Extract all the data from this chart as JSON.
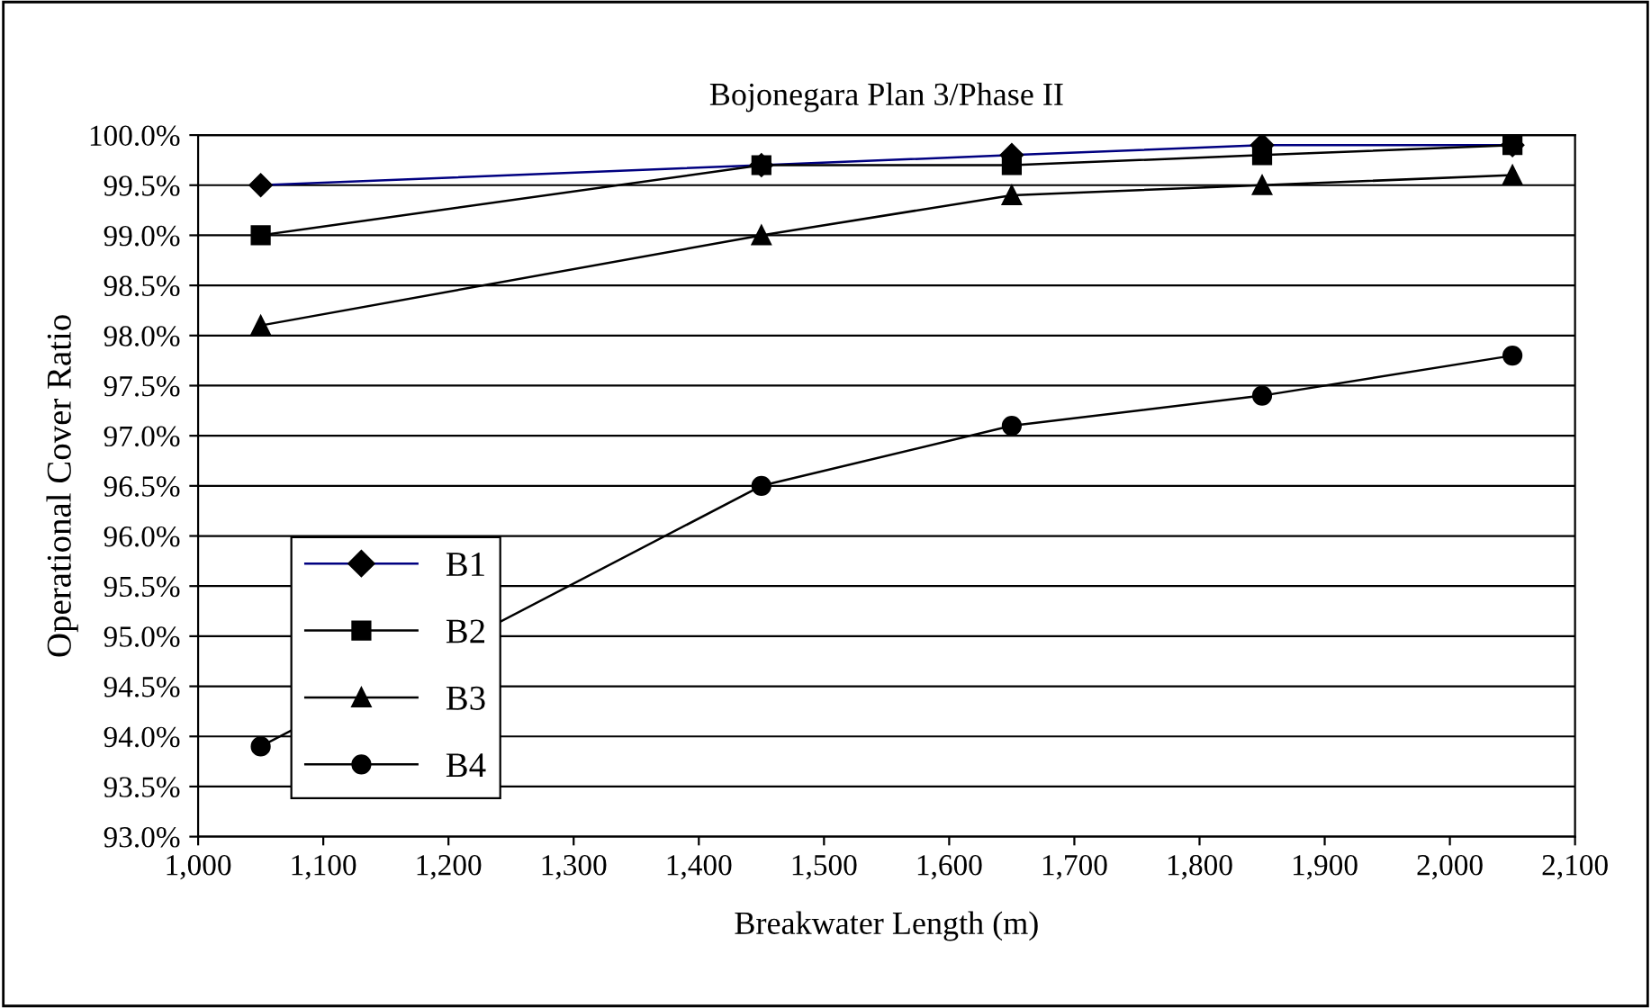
{
  "chart_data": {
    "type": "line",
    "title": "Bojonegara Plan 3/Phase II",
    "xlabel": "Breakwater Length (m)",
    "ylabel": "Operational Cover Ratio",
    "x": [
      1050,
      1450,
      1650,
      1850,
      2050
    ],
    "series": [
      {
        "name": "B1",
        "color": "#000080",
        "marker": "diamond",
        "values": [
          99.5,
          99.7,
          99.8,
          99.9,
          99.9
        ]
      },
      {
        "name": "B2",
        "color": "#000000",
        "marker": "square",
        "values": [
          99.0,
          99.7,
          99.7,
          99.8,
          99.9
        ]
      },
      {
        "name": "B3",
        "color": "#000000",
        "marker": "triangle",
        "values": [
          98.1,
          99.0,
          99.4,
          99.5,
          99.6
        ]
      },
      {
        "name": "B4",
        "color": "#000000",
        "marker": "circle",
        "values": [
          93.9,
          96.5,
          97.1,
          97.4,
          97.8
        ]
      }
    ],
    "xlim": [
      1000,
      2100
    ],
    "xticks": [
      {
        "value": 1000,
        "label": "1,000"
      },
      {
        "value": 1100,
        "label": "1,100"
      },
      {
        "value": 1200,
        "label": "1,200"
      },
      {
        "value": 1300,
        "label": "1,300"
      },
      {
        "value": 1400,
        "label": "1,400"
      },
      {
        "value": 1500,
        "label": "1,500"
      },
      {
        "value": 1600,
        "label": "1,600"
      },
      {
        "value": 1700,
        "label": "1,700"
      },
      {
        "value": 1800,
        "label": "1,800"
      },
      {
        "value": 1900,
        "label": "1,900"
      },
      {
        "value": 2000,
        "label": "2,000"
      },
      {
        "value": 2100,
        "label": "2,100"
      }
    ],
    "ylim": [
      93,
      100
    ],
    "yticks": [
      {
        "value": 93,
        "label": "93.0%"
      },
      {
        "value": 93.5,
        "label": "93.5%"
      },
      {
        "value": 94,
        "label": "94.0%"
      },
      {
        "value": 94.5,
        "label": "94.5%"
      },
      {
        "value": 95,
        "label": "95.0%"
      },
      {
        "value": 95.5,
        "label": "95.5%"
      },
      {
        "value": 96,
        "label": "96.0%"
      },
      {
        "value": 96.5,
        "label": "96.5%"
      },
      {
        "value": 97,
        "label": "97.0%"
      },
      {
        "value": 97.5,
        "label": "97.5%"
      },
      {
        "value": 98,
        "label": "98.0%"
      },
      {
        "value": 98.5,
        "label": "98.5%"
      },
      {
        "value": 99,
        "label": "99.0%"
      },
      {
        "value": 99.5,
        "label": "99.5%"
      },
      {
        "value": 100,
        "label": "100.0%"
      }
    ],
    "grid": "y",
    "legend": "bottom left",
    "line_style": "solid"
  }
}
